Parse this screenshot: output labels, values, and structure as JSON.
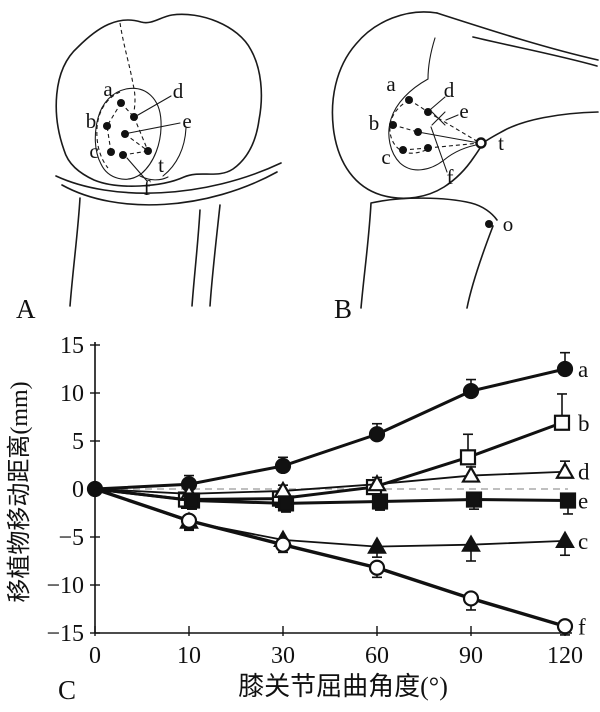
{
  "panels": {
    "a": "A",
    "b": "B",
    "c": "C"
  },
  "diagram_a": {
    "labels": {
      "a": "a",
      "b": "b",
      "c": "c",
      "d": "d",
      "e": "e",
      "f": "f",
      "t": "t"
    }
  },
  "diagram_b": {
    "labels": {
      "a": "a",
      "b": "b",
      "c": "c",
      "d": "d",
      "e": "e",
      "f": "f",
      "t": "t",
      "o": "o"
    }
  },
  "chart_data": {
    "type": "line",
    "title": "",
    "xlabel": "膝关节屈曲角度(°)",
    "ylabel": "移植物移动距离(mm)",
    "x_categories": [
      0,
      10,
      30,
      60,
      90,
      120
    ],
    "yticks": [
      15,
      10,
      5,
      0,
      -5,
      -10,
      -15
    ],
    "ylim": [
      -15,
      15
    ],
    "grid": false,
    "zero_dashed_line": true,
    "legend_position": "right-of-last-point",
    "series": [
      {
        "name": "a",
        "marker": "circle-filled",
        "values": [
          0,
          0.5,
          2.4,
          5.7,
          10.2,
          12.5
        ],
        "errors": [
          0,
          0.9,
          0.9,
          1.1,
          1.2,
          1.7
        ]
      },
      {
        "name": "b",
        "marker": "square-open",
        "values": [
          0,
          -1.1,
          -1.0,
          0.2,
          3.3,
          6.9
        ],
        "errors": [
          0,
          -0.9,
          -0.9,
          0.7,
          2.4,
          3.0
        ]
      },
      {
        "name": "d",
        "marker": "triangle-open",
        "values": [
          0,
          -0.5,
          -0.2,
          0.5,
          1.4,
          1.8
        ],
        "errors": [
          0,
          0.5,
          0.6,
          0.7,
          0.9,
          1.1
        ]
      },
      {
        "name": "e",
        "marker": "square-filled",
        "values": [
          0,
          -1.2,
          -1.5,
          -1.3,
          -1.1,
          -1.2
        ],
        "errors": [
          0,
          -0.9,
          -0.9,
          -0.9,
          -1.0,
          -1.4
        ]
      },
      {
        "name": "c",
        "marker": "triangle-filled",
        "values": [
          0,
          -3.4,
          -5.3,
          -6.0,
          -5.8,
          -5.4
        ],
        "errors": [
          0,
          -0.9,
          -1.0,
          -1.1,
          -1.7,
          -1.5
        ]
      },
      {
        "name": "f",
        "marker": "circle-open",
        "values": [
          0,
          -3.3,
          -5.8,
          -8.2,
          -11.4,
          -14.3
        ],
        "errors": [
          0,
          -0.9,
          -0.8,
          -1.0,
          -1.2,
          -0.9
        ]
      }
    ]
  }
}
